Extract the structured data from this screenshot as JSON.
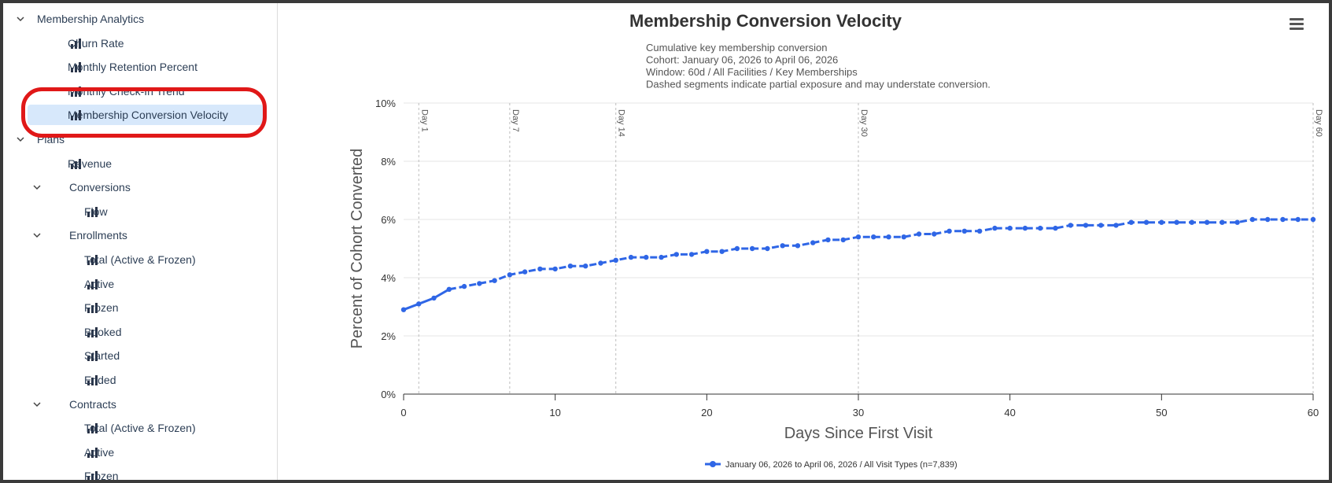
{
  "sidebar": {
    "items": [
      {
        "label": "Membership Analytics",
        "type": "group",
        "level": 0,
        "expanded": true
      },
      {
        "label": "Churn Rate",
        "type": "report",
        "level": 1
      },
      {
        "label": "Monthly Retention Percent",
        "type": "report",
        "level": 1
      },
      {
        "label": "Monthly Check-In Trend",
        "type": "report",
        "level": 1
      },
      {
        "label": "Membership Conversion Velocity",
        "type": "report",
        "level": 1,
        "selected": true
      },
      {
        "label": "Plans",
        "type": "group",
        "level": 0,
        "expanded": true
      },
      {
        "label": "Revenue",
        "type": "report",
        "level": 1
      },
      {
        "label": "Conversions",
        "type": "group",
        "level": 1,
        "expanded": true
      },
      {
        "label": "Flow",
        "type": "report",
        "level": 2
      },
      {
        "label": "Enrollments",
        "type": "group",
        "level": 1,
        "expanded": true
      },
      {
        "label": "Total (Active & Frozen)",
        "type": "report",
        "level": 2
      },
      {
        "label": "Active",
        "type": "report",
        "level": 2
      },
      {
        "label": "Frozen",
        "type": "report",
        "level": 2
      },
      {
        "label": "Booked",
        "type": "report",
        "level": 2
      },
      {
        "label": "Started",
        "type": "report",
        "level": 2
      },
      {
        "label": "Ended",
        "type": "report",
        "level": 2
      },
      {
        "label": "Contracts",
        "type": "group",
        "level": 1,
        "expanded": true
      },
      {
        "label": "Total (Active & Frozen)",
        "type": "report",
        "level": 2
      },
      {
        "label": "Active",
        "type": "report",
        "level": 2
      },
      {
        "label": "Frozen",
        "type": "report",
        "level": 2
      }
    ]
  },
  "colors": {
    "series": "#2f66e6",
    "selected_bg": "#d7e8fb",
    "annotation_ring": "#e01818",
    "text": "#2c3e55"
  },
  "icons": {
    "group_toggle": "chevron-down-icon",
    "report": "bar-chart-icon",
    "menu": "hamburger-menu-icon"
  },
  "chart_data": {
    "type": "line",
    "title": "Membership Conversion Velocity",
    "subtitle": [
      "Cumulative key membership conversion",
      "Cohort: January 06, 2026 to April 06, 2026",
      "Window: 60d / All Facilities / Key Memberships",
      "Dashed segments indicate partial exposure and may understate conversion."
    ],
    "xlabel": "Days Since First Visit",
    "ylabel": "Percent of Cohort Converted",
    "xlim": [
      0,
      60
    ],
    "ylim": [
      0,
      10
    ],
    "x_ticks": [
      0,
      10,
      20,
      30,
      40,
      50,
      60
    ],
    "y_ticks": [
      "0%",
      "2%",
      "4%",
      "6%",
      "8%",
      "10%"
    ],
    "y_tick_values": [
      0,
      2,
      4,
      6,
      8,
      10
    ],
    "grid": true,
    "legend_position": "bottom",
    "plot_lines": [
      {
        "x": 1,
        "label": "Day 1"
      },
      {
        "x": 7,
        "label": "Day 7"
      },
      {
        "x": 14,
        "label": "Day 14"
      },
      {
        "x": 30,
        "label": "Day 30"
      },
      {
        "x": 60,
        "label": "Day 60"
      }
    ],
    "series": [
      {
        "name": "January 06, 2026 to April 06, 2026 / All Visit Types (n=7,839)",
        "solid_until_x": 3,
        "x": [
          0,
          1,
          2,
          3,
          4,
          5,
          6,
          7,
          8,
          9,
          10,
          11,
          12,
          13,
          14,
          15,
          16,
          17,
          18,
          19,
          20,
          21,
          22,
          23,
          24,
          25,
          26,
          27,
          28,
          29,
          30,
          31,
          32,
          33,
          34,
          35,
          36,
          37,
          38,
          39,
          40,
          41,
          42,
          43,
          44,
          45,
          46,
          47,
          48,
          49,
          50,
          51,
          52,
          53,
          54,
          55,
          56,
          57,
          58,
          59,
          60
        ],
        "values": [
          2.9,
          3.1,
          3.3,
          3.6,
          3.7,
          3.8,
          3.9,
          4.1,
          4.2,
          4.3,
          4.3,
          4.4,
          4.4,
          4.5,
          4.6,
          4.7,
          4.7,
          4.7,
          4.8,
          4.8,
          4.9,
          4.9,
          5.0,
          5.0,
          5.0,
          5.1,
          5.1,
          5.2,
          5.3,
          5.3,
          5.4,
          5.4,
          5.4,
          5.4,
          5.5,
          5.5,
          5.6,
          5.6,
          5.6,
          5.7,
          5.7,
          5.7,
          5.7,
          5.7,
          5.8,
          5.8,
          5.8,
          5.8,
          5.9,
          5.9,
          5.9,
          5.9,
          5.9,
          5.9,
          5.9,
          5.9,
          6.0,
          6.0,
          6.0,
          6.0,
          6.0
        ]
      }
    ]
  }
}
